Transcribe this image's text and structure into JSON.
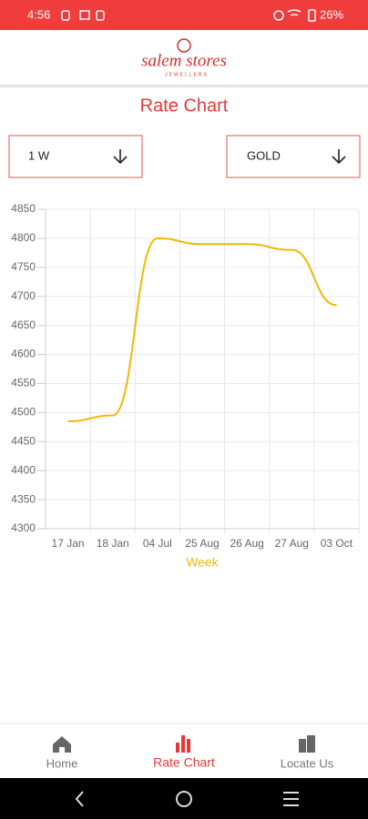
{
  "status_bar": {
    "time": "4:56",
    "battery": "26%"
  },
  "header": {
    "logo": "salem stores",
    "logo_sub": "JEWELLERS"
  },
  "title": "Rate Chart",
  "filters": [
    {
      "label": "1 W"
    },
    {
      "label": "GOLD"
    }
  ],
  "chart_data": {
    "type": "line",
    "x_label": "Week",
    "categories": [
      "17 Jan",
      "18 Jan",
      "04 Jul",
      "25 Aug",
      "26 Aug",
      "27 Aug",
      "03 Oct"
    ],
    "values": [
      4485,
      4495,
      4800,
      4790,
      4790,
      4780,
      4685
    ],
    "color": "#f2b705",
    "ylim": [
      4300,
      4850
    ],
    "yticks": [
      4300,
      4350,
      4400,
      4450,
      4500,
      4550,
      4600,
      4650,
      4700,
      4750,
      4800,
      4850
    ],
    "grid": true
  },
  "nav": [
    {
      "label": "Home"
    },
    {
      "label": "Rate Chart"
    },
    {
      "label": "Locate Us"
    }
  ]
}
